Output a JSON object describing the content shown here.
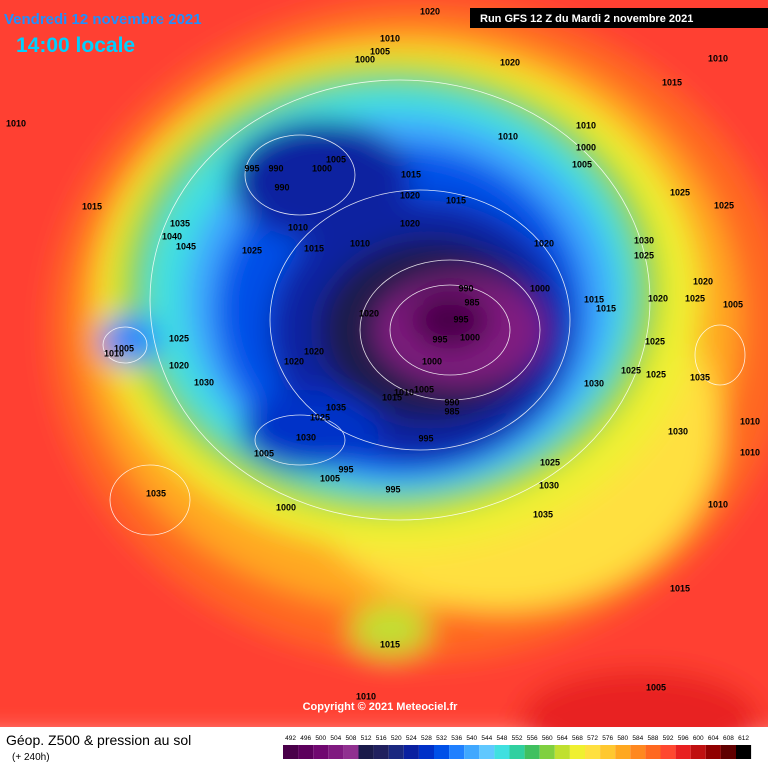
{
  "header": {
    "date": "Vendredi 12 novembre 2021",
    "time": "14:00 locale",
    "run": "Run GFS 12 Z du Mardi 2 novembre 2021"
  },
  "footer": {
    "title": "Géop. Z500 & pression au sol",
    "lead": "(+ 240h)",
    "copyright": "Copyright © 2021 Meteociel.fr"
  },
  "legend": {
    "scale": [
      {
        "value": 492,
        "color": "#4a004a"
      },
      {
        "value": 496,
        "color": "#5c005c"
      },
      {
        "value": 500,
        "color": "#700870"
      },
      {
        "value": 504,
        "color": "#801a80"
      },
      {
        "value": 508,
        "color": "#903090"
      },
      {
        "value": 512,
        "color": "#1a1a4a"
      },
      {
        "value": 516,
        "color": "#20205e"
      },
      {
        "value": 520,
        "color": "#1a2880"
      },
      {
        "value": 524,
        "color": "#0a20a0"
      },
      {
        "value": 528,
        "color": "#0030c8"
      },
      {
        "value": 532,
        "color": "#0050e8"
      },
      {
        "value": 536,
        "color": "#2080ff"
      },
      {
        "value": 540,
        "color": "#40a8ff"
      },
      {
        "value": 544,
        "color": "#60c8ff"
      },
      {
        "value": 548,
        "color": "#40e0e0"
      },
      {
        "value": 552,
        "color": "#30d0a0"
      },
      {
        "value": 556,
        "color": "#40c060"
      },
      {
        "value": 560,
        "color": "#80d040"
      },
      {
        "value": 564,
        "color": "#c0e030"
      },
      {
        "value": 568,
        "color": "#f0f030"
      },
      {
        "value": 572,
        "color": "#ffe040"
      },
      {
        "value": 576,
        "color": "#ffc830"
      },
      {
        "value": 580,
        "color": "#ffa820"
      },
      {
        "value": 584,
        "color": "#ff8820"
      },
      {
        "value": 588,
        "color": "#ff6820"
      },
      {
        "value": 592,
        "color": "#ff4830"
      },
      {
        "value": 596,
        "color": "#e82020"
      },
      {
        "value": 600,
        "color": "#c01010"
      },
      {
        "value": 604,
        "color": "#900000"
      },
      {
        "value": 608,
        "color": "#600000"
      },
      {
        "value": 612,
        "color": "#000000"
      }
    ]
  },
  "pressure_labels": [
    "1020",
    "1010",
    "1005",
    "1000",
    "1020",
    "1015",
    "1010",
    "1010",
    "1010",
    "1010",
    "1000",
    "1005",
    "995",
    "990",
    "1005",
    "1000",
    "990",
    "1015",
    "1020",
    "1015",
    "1025",
    "1025",
    "1015",
    "1035",
    "1040",
    "1045",
    "1025",
    "1010",
    "1015",
    "1010",
    "1020",
    "1020",
    "1030",
    "1025",
    "1005",
    "1010",
    "1025",
    "1020",
    "1030",
    "1020",
    "1020",
    "1020",
    "990",
    "985",
    "995",
    "995",
    "1000",
    "1000",
    "1015",
    "1015",
    "1020",
    "1020",
    "1025",
    "1005",
    "1025",
    "1030",
    "1025",
    "1025",
    "1035",
    "1030",
    "1005",
    "1035",
    "1025",
    "1030",
    "990",
    "985",
    "995",
    "995",
    "1005",
    "995",
    "1000",
    "1025",
    "1030",
    "1035",
    "1010",
    "1035",
    "1015",
    "1015",
    "1005",
    "1010",
    "1010",
    "1010",
    "1000",
    "1005",
    "1010",
    "1015"
  ]
}
